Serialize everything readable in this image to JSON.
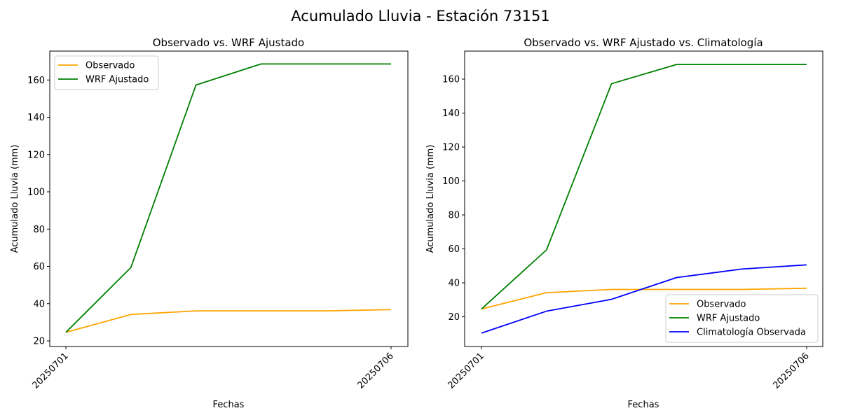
{
  "figure": {
    "suptitle": "Acumulado Lluvia - Estación 73151"
  },
  "chart_data": [
    {
      "type": "line",
      "title": "Observado vs. WRF Ajustado",
      "xlabel": "Fechas",
      "ylabel": "Acumulado Lluvia (mm)",
      "x": [
        "20250701",
        "20250702",
        "20250703",
        "20250704",
        "20250705",
        "20250706"
      ],
      "xticklabels": [
        "20250701",
        "20250706"
      ],
      "ylim": [
        17,
        175.5
      ],
      "yticks": [
        20,
        40,
        60,
        80,
        100,
        120,
        140,
        160
      ],
      "grid": false,
      "legend": "upper left",
      "series": [
        {
          "name": "Observado",
          "color": "#ffa500",
          "values": [
            24.6,
            34.2,
            36.1,
            36.1,
            36.1,
            36.8
          ]
        },
        {
          "name": "WRF Ajustado",
          "color": "#008000",
          "values": [
            24.6,
            59.4,
            157.3,
            168.6,
            168.6,
            168.6
          ]
        }
      ]
    },
    {
      "type": "line",
      "title": "Observado vs. WRF Ajustado vs. Climatología",
      "xlabel": "Fechas",
      "ylabel": "Acumulado Lluvia (mm)",
      "x": [
        "20250701",
        "20250702",
        "20250703",
        "20250704",
        "20250705",
        "20250706"
      ],
      "xticklabels": [
        "20250701",
        "20250706"
      ],
      "ylim": [
        2.5,
        176.5
      ],
      "yticks": [
        20,
        40,
        60,
        80,
        100,
        120,
        140,
        160
      ],
      "grid": false,
      "legend": "lower right",
      "series": [
        {
          "name": "Observado",
          "color": "#ffa500",
          "values": [
            24.6,
            34.2,
            36.1,
            36.1,
            36.1,
            36.8
          ]
        },
        {
          "name": "WRF Ajustado",
          "color": "#008000",
          "values": [
            24.6,
            59.4,
            157.3,
            168.6,
            168.6,
            168.6
          ]
        },
        {
          "name": "Climatología Observada",
          "color": "#0000ff",
          "values": [
            10.4,
            23.3,
            30.3,
            43.1,
            48.1,
            50.6
          ]
        }
      ]
    }
  ]
}
